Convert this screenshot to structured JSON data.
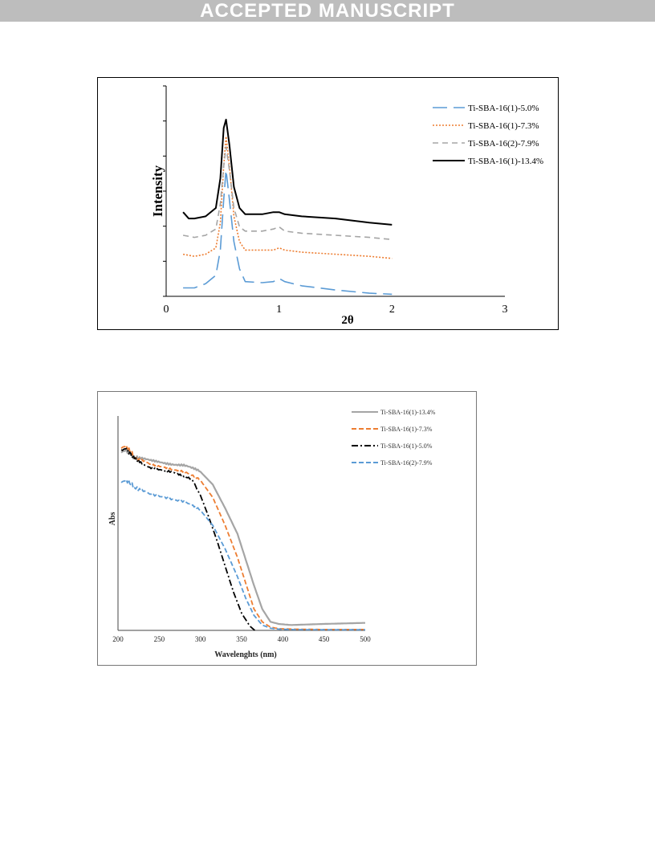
{
  "banner": {
    "text": "ACCEPTED MANUSCRIPT"
  },
  "chart_data": [
    {
      "type": "line",
      "title": "",
      "xlabel": "2θ",
      "ylabel": "Intensity",
      "xlim": [
        0,
        3
      ],
      "x_ticks": [
        "0",
        "1",
        "2",
        "3"
      ],
      "y_tick_labels": "none",
      "legend_position": "top-right",
      "grid": false,
      "series": [
        {
          "name": "Ti-SBA-16(1)-5.0%",
          "color": "#5b9bd5",
          "style": "long-dash",
          "x": [
            0.15,
            0.25,
            0.35,
            0.44,
            0.48,
            0.51,
            0.53,
            0.56,
            0.6,
            0.65,
            0.7,
            0.85,
            0.95,
            1.0,
            1.05,
            1.2,
            1.5,
            1.8,
            2.0
          ],
          "y": [
            0.04,
            0.04,
            0.06,
            0.1,
            0.22,
            0.46,
            0.6,
            0.46,
            0.26,
            0.13,
            0.07,
            0.065,
            0.07,
            0.085,
            0.07,
            0.05,
            0.03,
            0.015,
            0.01
          ]
        },
        {
          "name": "Ti-SBA-16(1)-7.3%",
          "color": "#ed7d31",
          "style": "dotted",
          "x": [
            0.15,
            0.25,
            0.35,
            0.44,
            0.48,
            0.51,
            0.53,
            0.56,
            0.6,
            0.65,
            0.7,
            0.85,
            0.95,
            1.0,
            1.05,
            1.2,
            1.5,
            1.8,
            2.0
          ],
          "y": [
            0.2,
            0.19,
            0.2,
            0.23,
            0.35,
            0.62,
            0.76,
            0.62,
            0.38,
            0.26,
            0.22,
            0.22,
            0.22,
            0.23,
            0.22,
            0.21,
            0.2,
            0.19,
            0.18
          ]
        },
        {
          "name": "Ti-SBA-16(2)-7.9%",
          "color": "#a5a5a5",
          "style": "short-dash",
          "x": [
            0.15,
            0.25,
            0.35,
            0.44,
            0.48,
            0.51,
            0.53,
            0.56,
            0.6,
            0.65,
            0.7,
            0.85,
            0.95,
            1.0,
            1.05,
            1.2,
            1.5,
            1.8,
            2.0
          ],
          "y": [
            0.29,
            0.28,
            0.29,
            0.32,
            0.44,
            0.62,
            0.71,
            0.6,
            0.42,
            0.33,
            0.31,
            0.31,
            0.32,
            0.33,
            0.31,
            0.3,
            0.29,
            0.28,
            0.27
          ]
        },
        {
          "name": "Ti-SBA-16(1)-13.4%",
          "color": "#000000",
          "style": "solid",
          "x": [
            0.15,
            0.2,
            0.25,
            0.35,
            0.44,
            0.48,
            0.51,
            0.53,
            0.56,
            0.6,
            0.65,
            0.7,
            0.85,
            0.95,
            1.0,
            1.05,
            1.2,
            1.5,
            1.8,
            2.0
          ],
          "y": [
            0.4,
            0.37,
            0.37,
            0.38,
            0.42,
            0.56,
            0.8,
            0.84,
            0.72,
            0.52,
            0.42,
            0.39,
            0.39,
            0.4,
            0.4,
            0.39,
            0.38,
            0.37,
            0.35,
            0.34
          ]
        }
      ]
    },
    {
      "type": "line",
      "title": "",
      "xlabel": "Wavelenghts (nm)",
      "ylabel": "Abs",
      "xlim": [
        200,
        500
      ],
      "x_ticks": [
        "200",
        "250",
        "300",
        "350",
        "400",
        "450",
        "500"
      ],
      "y_tick_labels": "none",
      "legend_position": "top-right",
      "grid": false,
      "series": [
        {
          "name": "Ti-SBA-16(1)-13.4%",
          "color": "#a5a5a5",
          "style": "solid",
          "x": [
            204,
            210,
            220,
            240,
            260,
            280,
            300,
            315,
            330,
            345,
            355,
            365,
            375,
            385,
            395,
            410,
            450,
            500
          ],
          "y": [
            0.82,
            0.83,
            0.81,
            0.79,
            0.78,
            0.77,
            0.74,
            0.68,
            0.57,
            0.45,
            0.33,
            0.21,
            0.1,
            0.04,
            0.03,
            0.025,
            0.03,
            0.035
          ]
        },
        {
          "name": "Ti-SBA-16(1)-7.3%",
          "color": "#ed7d31",
          "style": "dash",
          "x": [
            204,
            210,
            220,
            240,
            260,
            280,
            300,
            315,
            330,
            345,
            355,
            365,
            375,
            385,
            395,
            410,
            450,
            500
          ],
          "y": [
            0.84,
            0.85,
            0.81,
            0.77,
            0.76,
            0.74,
            0.7,
            0.62,
            0.49,
            0.34,
            0.22,
            0.1,
            0.04,
            0.015,
            0.008,
            0.006,
            0.004,
            0.004
          ]
        },
        {
          "name": "Ti-SBA-16(1)-5.0%",
          "color": "#000000",
          "style": "dash-dot",
          "x": [
            204,
            210,
            220,
            240,
            260,
            280,
            290,
            300,
            310,
            320,
            330,
            340,
            350,
            360,
            366
          ],
          "y": [
            0.85,
            0.86,
            0.8,
            0.76,
            0.74,
            0.72,
            0.7,
            0.63,
            0.53,
            0.42,
            0.3,
            0.18,
            0.08,
            0.02,
            0.0
          ]
        },
        {
          "name": "Ti-SBA-16(2)-7.9%",
          "color": "#5b9bd5",
          "style": "dash",
          "x": [
            204,
            210,
            220,
            240,
            260,
            280,
            300,
            315,
            330,
            345,
            355,
            365,
            375,
            385,
            395,
            410,
            450,
            500
          ],
          "y": [
            0.68,
            0.69,
            0.67,
            0.63,
            0.62,
            0.6,
            0.56,
            0.49,
            0.38,
            0.25,
            0.15,
            0.07,
            0.025,
            0.01,
            0.006,
            0.004,
            0.003,
            0.003
          ]
        }
      ]
    }
  ]
}
